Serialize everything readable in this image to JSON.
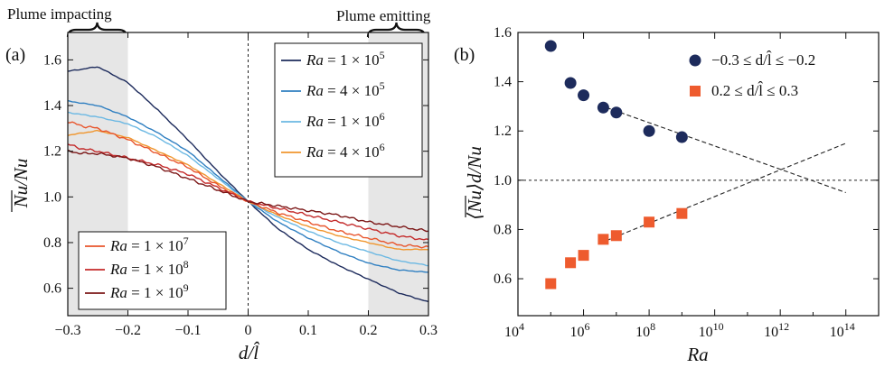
{
  "region_labels": {
    "left": "Plume impacting",
    "right": "Plume emitting"
  },
  "colors": {
    "ra_1e5": "#1d2b5c",
    "ra_4e5": "#2f7fc1",
    "ra_1e6": "#6bb8e3",
    "ra_4e6": "#f0962e",
    "ra_1e7": "#e8552c",
    "ra_1e8": "#c42a2a",
    "ra_1e9": "#7c1818",
    "navy_marker": "#1d2b5c",
    "orange_marker": "#ee5b2e",
    "shade": "#e6e6e6"
  },
  "chart_data": [
    {
      "panel": "(a)",
      "type": "line",
      "xlabel": "d/l̂",
      "ylabel": "Nu/Nu",
      "xlim": [
        -0.3,
        0.3
      ],
      "ylim": [
        0.48,
        1.72
      ],
      "xticks": [
        "−0.3",
        "−0.2",
        "−0.1",
        "0",
        "0.1",
        "0.2",
        "0.3"
      ],
      "yticks": [
        "0.6",
        "0.8",
        "1.0",
        "1.2",
        "1.4",
        "1.6"
      ],
      "shaded_x": [
        [
          -0.3,
          -0.2
        ],
        [
          0.2,
          0.3
        ]
      ],
      "vline_x": 0,
      "x": [
        -0.3,
        -0.275,
        -0.25,
        -0.2,
        -0.15,
        -0.1,
        -0.05,
        0,
        0.05,
        0.1,
        0.15,
        0.2,
        0.25,
        0.3
      ],
      "series": [
        {
          "name": "Ra = 1 × 10",
          "exp": "5",
          "color_key": "ra_1e5",
          "values": [
            1.55,
            1.56,
            1.57,
            1.5,
            1.38,
            1.25,
            1.11,
            0.98,
            0.86,
            0.77,
            0.7,
            0.64,
            0.58,
            0.54
          ]
        },
        {
          "name": "Ra = 4 × 10",
          "exp": "5",
          "color_key": "ra_4e5",
          "values": [
            1.42,
            1.41,
            1.4,
            1.35,
            1.28,
            1.2,
            1.09,
            0.98,
            0.89,
            0.82,
            0.76,
            0.71,
            0.68,
            0.67
          ]
        },
        {
          "name": "Ra = 1 × 10",
          "exp": "6",
          "color_key": "ra_1e6",
          "values": [
            1.37,
            1.36,
            1.35,
            1.32,
            1.26,
            1.18,
            1.08,
            0.98,
            0.91,
            0.85,
            0.8,
            0.76,
            0.72,
            0.7
          ]
        },
        {
          "name": "Ra = 4 × 10",
          "exp": "6",
          "color_key": "ra_4e6",
          "values": [
            1.27,
            1.28,
            1.29,
            1.26,
            1.2,
            1.14,
            1.06,
            0.98,
            0.92,
            0.87,
            0.83,
            0.8,
            0.77,
            0.77
          ]
        },
        {
          "name": "Ra = 1 × 10",
          "exp": "7",
          "color_key": "ra_1e7",
          "values": [
            1.33,
            1.31,
            1.3,
            1.25,
            1.19,
            1.13,
            1.05,
            0.98,
            0.93,
            0.89,
            0.85,
            0.82,
            0.79,
            0.78
          ]
        },
        {
          "name": "Ra = 1 × 10",
          "exp": "8",
          "color_key": "ra_1e8",
          "values": [
            1.23,
            1.21,
            1.2,
            1.17,
            1.14,
            1.1,
            1.04,
            0.98,
            0.95,
            0.92,
            0.89,
            0.86,
            0.83,
            0.81
          ]
        },
        {
          "name": "Ra = 1 × 10",
          "exp": "9",
          "color_key": "ra_1e9",
          "values": [
            1.2,
            1.19,
            1.19,
            1.17,
            1.13,
            1.08,
            1.03,
            0.98,
            0.96,
            0.94,
            0.92,
            0.89,
            0.87,
            0.85
          ]
        }
      ]
    },
    {
      "panel": "(b)",
      "type": "scatter",
      "xlabel": "Ra",
      "ylabel": "⟨Nu⟩d/Nu",
      "xscale": "log",
      "xlim": [
        10000,
        1000000000000000
      ],
      "ylim": [
        0.45,
        1.6
      ],
      "xticks_exp": [
        "4",
        "6",
        "8",
        "10",
        "12",
        "14"
      ],
      "yticks": [
        "0.6",
        "0.8",
        "1.0",
        "1.2",
        "1.4",
        "1.6"
      ],
      "hline_y": 1.0,
      "series": [
        {
          "name": "−0.3 ≤ d/l̂ ≤ −0.2",
          "marker": "circle",
          "color_key": "navy_marker",
          "x": [
            100000,
            400000,
            1000000,
            4000000,
            10000000,
            100000000,
            1000000000
          ],
          "y": [
            1.545,
            1.395,
            1.345,
            1.295,
            1.275,
            1.2,
            1.175
          ]
        },
        {
          "name": "0.2 ≤ d/l̂ ≤ 0.3",
          "marker": "square",
          "color_key": "orange_marker",
          "x": [
            100000,
            400000,
            1000000,
            4000000,
            10000000,
            100000000,
            1000000000
          ],
          "y": [
            0.58,
            0.665,
            0.695,
            0.76,
            0.775,
            0.83,
            0.865
          ]
        }
      ],
      "fit_lines": [
        {
          "color_key": "navy_marker",
          "x": [
            5000000,
            100000000000000
          ],
          "y": [
            1.295,
            0.95
          ]
        },
        {
          "color_key": "orange_marker",
          "x": [
            5000000,
            100000000000000
          ],
          "y": [
            0.755,
            1.15
          ]
        }
      ]
    }
  ]
}
